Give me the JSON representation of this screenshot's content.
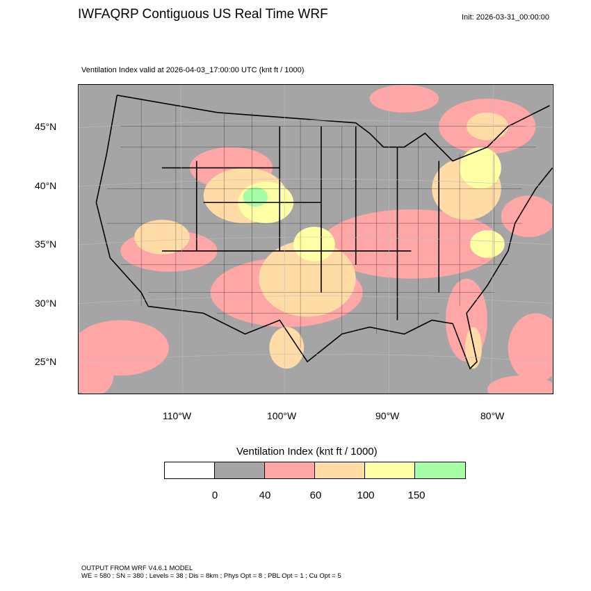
{
  "header": {
    "title": "IWFAQRP Contiguous US Real Time WRF",
    "init": "Init: 2026-03-31_00:00:00",
    "subtitle": "Ventilation Index valid at 2026-04-03_17:00:00 UTC   (knt ft / 1000)"
  },
  "map": {
    "lat_labels": [
      "45°N",
      "40°N",
      "35°N",
      "30°N",
      "25°N"
    ],
    "lon_labels": [
      "110°W",
      "100°W",
      "90°W",
      "80°W"
    ]
  },
  "colorbar": {
    "title": "Ventilation Index  (knt ft / 1000)",
    "colors": [
      "#ffffff",
      "#a5a5a5",
      "#ffa6a6",
      "#ffdca6",
      "#ffffa6",
      "#a6ffa6"
    ],
    "labels": [
      "0",
      "40",
      "60",
      "100",
      "150"
    ]
  },
  "footer": {
    "line1": "OUTPUT FROM WRF V4.6.1 MODEL",
    "line2": "WE = 580 ; SN = 380 ; Levels = 38 ; Dis = 8km ; Phys Opt = 8 ; PBL Opt = 1 ; Cu Opt = 5"
  }
}
